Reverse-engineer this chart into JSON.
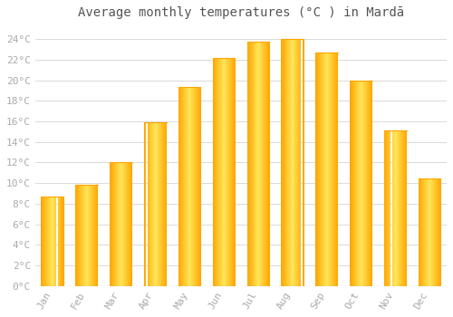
{
  "title": "Average monthly temperatures (°C ) in Mardā",
  "months": [
    "Jan",
    "Feb",
    "Mar",
    "Apr",
    "May",
    "Jun",
    "Jul",
    "Aug",
    "Sep",
    "Oct",
    "Nov",
    "Dec"
  ],
  "values": [
    8.7,
    9.8,
    12.0,
    15.9,
    19.4,
    22.2,
    23.8,
    24.0,
    22.7,
    20.0,
    15.1,
    10.5
  ],
  "bar_color_main": "#FFA500",
  "bar_color_light": "#FFD060",
  "background_color": "#FFFFFF",
  "plot_bg_color": "#FFFFFF",
  "grid_color": "#CCCCCC",
  "ylim": [
    0,
    25.5
  ],
  "yticks": [
    0,
    2,
    4,
    6,
    8,
    10,
    12,
    14,
    16,
    18,
    20,
    22,
    24
  ],
  "ytick_labels": [
    "0°C",
    "2°C",
    "4°C",
    "6°C",
    "8°C",
    "10°C",
    "12°C",
    "14°C",
    "16°C",
    "18°C",
    "20°C",
    "22°C",
    "24°C"
  ],
  "title_fontsize": 10,
  "tick_fontsize": 8,
  "tick_font_color": "#AAAAAA",
  "title_color": "#555555",
  "bar_width": 0.65
}
